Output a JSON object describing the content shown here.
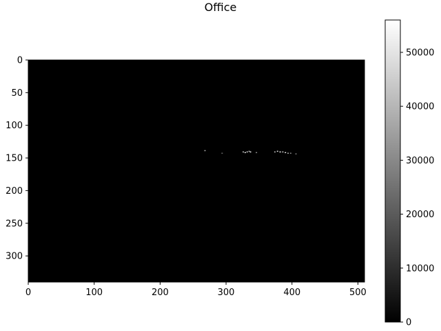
{
  "chart_data": {
    "type": "heatmap",
    "title": "Office",
    "xlabel": "",
    "ylabel": "",
    "colormap": "gray",
    "image_size": {
      "width": 510,
      "height": 340
    },
    "xlim": [
      0,
      510
    ],
    "ylim": [
      340,
      0
    ],
    "x_ticks": [
      0,
      100,
      200,
      300,
      400,
      500
    ],
    "y_ticks": [
      0,
      50,
      100,
      150,
      200,
      250,
      300
    ],
    "colorbar": {
      "range": [
        0,
        56000
      ],
      "ticks": [
        0,
        10000,
        20000,
        30000,
        40000,
        50000
      ],
      "tick_labels": [
        "0",
        "10000",
        "20000",
        "30000",
        "40000",
        "50000"
      ]
    },
    "background_value": 0,
    "bright_pixels": [
      {
        "x": 267,
        "y": 138,
        "v": 36000
      },
      {
        "x": 293,
        "y": 142,
        "v": 22000
      },
      {
        "x": 325,
        "y": 140,
        "v": 42000
      },
      {
        "x": 328,
        "y": 141,
        "v": 50000
      },
      {
        "x": 331,
        "y": 140,
        "v": 46000
      },
      {
        "x": 334,
        "y": 139,
        "v": 38000
      },
      {
        "x": 336,
        "y": 140,
        "v": 52000
      },
      {
        "x": 345,
        "y": 141,
        "v": 30000
      },
      {
        "x": 373,
        "y": 140,
        "v": 40000
      },
      {
        "x": 377,
        "y": 139,
        "v": 48000
      },
      {
        "x": 381,
        "y": 140,
        "v": 54000
      },
      {
        "x": 385,
        "y": 140,
        "v": 44000
      },
      {
        "x": 389,
        "y": 141,
        "v": 50000
      },
      {
        "x": 393,
        "y": 142,
        "v": 36000
      },
      {
        "x": 397,
        "y": 142,
        "v": 28000
      },
      {
        "x": 405,
        "y": 143,
        "v": 26000
      }
    ]
  },
  "colors": {
    "background": "#ffffff",
    "image_background": "#000000",
    "axis": "#000000"
  }
}
